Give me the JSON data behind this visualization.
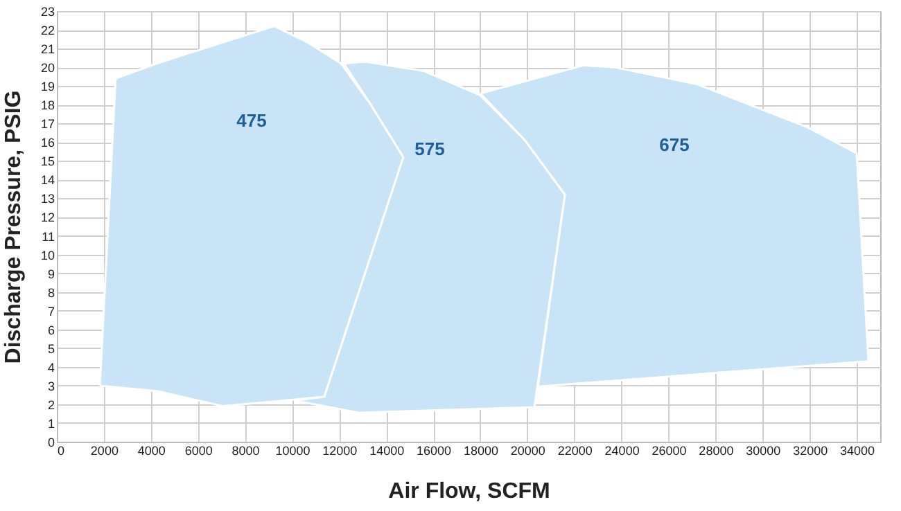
{
  "chart_data": {
    "type": "area",
    "xlabel": "Air Flow, SCFM",
    "ylabel": "Discharge Pressure, PSIG",
    "xlim": [
      0,
      35000
    ],
    "ylim": [
      0,
      23
    ],
    "xticks": [
      0,
      2000,
      4000,
      6000,
      8000,
      10000,
      12000,
      14000,
      16000,
      18000,
      20000,
      22000,
      24000,
      26000,
      28000,
      30000,
      32000,
      34000
    ],
    "yticks": [
      0,
      1,
      2,
      3,
      4,
      5,
      6,
      7,
      8,
      9,
      10,
      11,
      12,
      13,
      14,
      15,
      16,
      17,
      18,
      19,
      20,
      21,
      22,
      23
    ],
    "grid": true,
    "series": [
      {
        "name": "475",
        "color": "#c9e3f7",
        "x": [
          1830,
          2500,
          4240,
          9250,
          10700,
          12080,
          13400,
          14730,
          11370,
          7070,
          4300
        ],
        "values": [
          3.0,
          19.4,
          20.2,
          22.2,
          21.3,
          20.2,
          17.9,
          15.2,
          2.4,
          1.9,
          2.7
        ]
      },
      {
        "name": "575",
        "color": "#c9e3f7",
        "x": [
          10100,
          11370,
          14730,
          13400,
          12200,
          13100,
          15600,
          18000,
          19900,
          21600,
          20300,
          12850
        ],
        "values": [
          2.2,
          2.4,
          15.2,
          17.9,
          20.2,
          20.3,
          19.8,
          18.5,
          16.1,
          13.2,
          1.85,
          1.55
        ]
      },
      {
        "name": "675",
        "color": "#c9e3f7",
        "x": [
          18000,
          22400,
          23700,
          27200,
          31900,
          34000,
          34500,
          20450,
          21600,
          19900
        ],
        "values": [
          18.6,
          20.1,
          20.0,
          19.1,
          16.8,
          15.4,
          4.3,
          2.95,
          13.2,
          16.1
        ]
      }
    ]
  }
}
